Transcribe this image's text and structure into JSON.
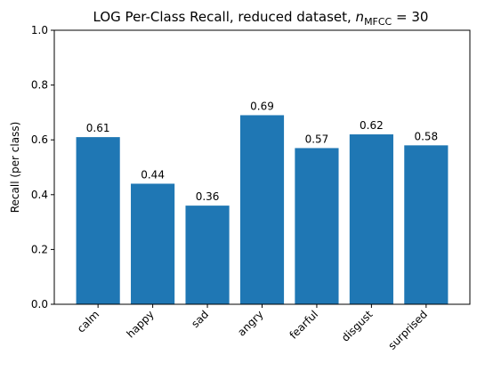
{
  "chart_data": {
    "type": "bar",
    "title_prefix": "LOG Per-Class Recall, reduced dataset, ",
    "title_math_var": "n",
    "title_math_sub": "MFCC",
    "title_math_rest": " = 30",
    "xlabel": "",
    "ylabel": "Recall (per class)",
    "categories": [
      "calm",
      "happy",
      "sad",
      "angry",
      "fearful",
      "disgust",
      "surprised"
    ],
    "values": [
      0.61,
      0.44,
      0.36,
      0.69,
      0.57,
      0.62,
      0.58
    ],
    "value_labels": [
      "0.61",
      "0.44",
      "0.36",
      "0.69",
      "0.57",
      "0.62",
      "0.58"
    ],
    "ylim": [
      0,
      1.0
    ],
    "yticks": [
      "0.0",
      "0.2",
      "0.4",
      "0.6",
      "0.8",
      "1.0"
    ],
    "grid": false,
    "bar_color": "#1f77b4"
  }
}
